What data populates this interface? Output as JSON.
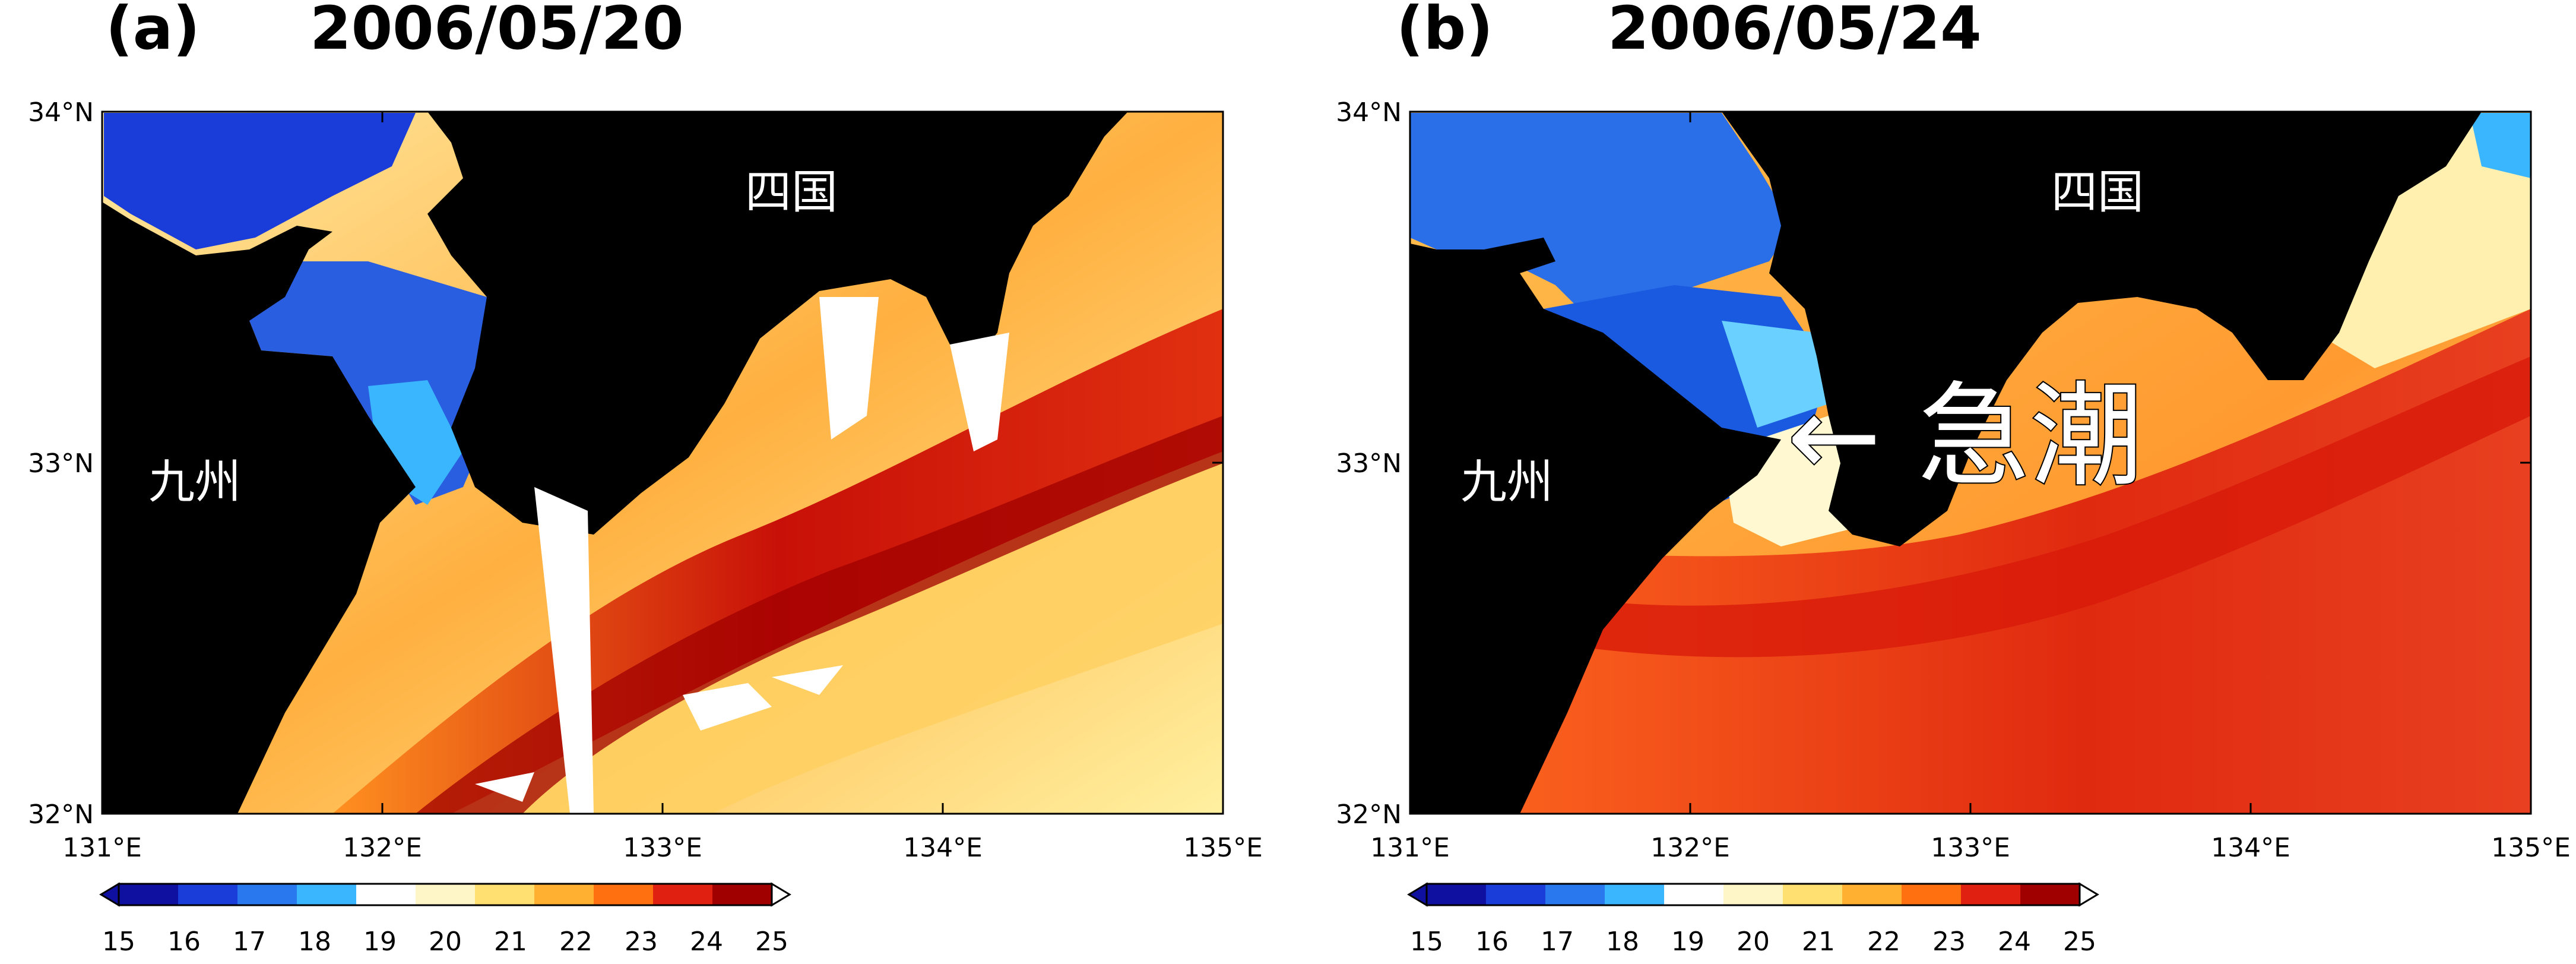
{
  "panels": [
    {
      "label": "(a)",
      "date": "2006/05/20",
      "land_labels": {
        "kyushu": "九州",
        "shikoku": "四国"
      },
      "annotation": "",
      "cloud_gaps": true
    },
    {
      "label": "(b)",
      "date": "2006/05/24",
      "land_labels": {
        "kyushu": "九州",
        "shikoku": "四国"
      },
      "annotation": "← 急潮",
      "cloud_gaps": false
    }
  ],
  "axes": {
    "x_ticks": [
      "131°E",
      "132°E",
      "133°E",
      "134°E",
      "135°E"
    ],
    "y_ticks": [
      "34°N",
      "33°N",
      "32°N"
    ],
    "lon_range": [
      131,
      135
    ],
    "lat_range": [
      32,
      34
    ]
  },
  "colorbar": {
    "ticks": [
      "15",
      "16",
      "17",
      "18",
      "19",
      "20",
      "21",
      "22",
      "23",
      "24",
      "25"
    ],
    "colors": [
      "#1010a0",
      "#1a3cd8",
      "#2a78ee",
      "#3ab6ff",
      "#ffffff",
      "#fff6c8",
      "#ffe070",
      "#ffb030",
      "#ff7010",
      "#e02010",
      "#a00000"
    ]
  },
  "colors": {
    "land": "#000000",
    "cold_water": "#1a3cd8",
    "warm_water": "#e03010",
    "cloud": "#ffffff"
  }
}
